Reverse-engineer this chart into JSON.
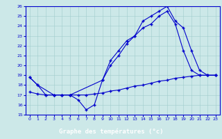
{
  "title": "Graphe des températures (°c)",
  "bg_color": "#cce8e8",
  "line_color": "#0000cc",
  "xlim": [
    -0.5,
    23.5
  ],
  "ylim": [
    15,
    26
  ],
  "yticks": [
    15,
    16,
    17,
    18,
    19,
    20,
    21,
    22,
    23,
    24,
    25,
    26
  ],
  "xticks": [
    0,
    1,
    2,
    3,
    4,
    5,
    6,
    7,
    8,
    9,
    10,
    11,
    12,
    13,
    14,
    15,
    16,
    17,
    18,
    19,
    20,
    21,
    22,
    23
  ],
  "series1_x": [
    0,
    1,
    2,
    3,
    4,
    5,
    6,
    7,
    8,
    9,
    10,
    11,
    12,
    13,
    14,
    15,
    16,
    17,
    18,
    19,
    20,
    21,
    22,
    23
  ],
  "series1_y": [
    18.8,
    18.0,
    17.0,
    17.0,
    17.0,
    17.0,
    16.5,
    15.5,
    16.0,
    18.5,
    20.0,
    21.0,
    22.2,
    23.0,
    24.5,
    25.0,
    25.5,
    26.0,
    24.5,
    23.8,
    21.5,
    19.5,
    19.0,
    19.0
  ],
  "series2_x": [
    0,
    1,
    3,
    4,
    5,
    9,
    10,
    11,
    12,
    13,
    14,
    15,
    16,
    17,
    18,
    19,
    20,
    21,
    22,
    23
  ],
  "series2_y": [
    18.8,
    18.0,
    17.0,
    17.0,
    17.0,
    18.5,
    20.5,
    21.5,
    22.5,
    23.0,
    23.8,
    24.2,
    25.0,
    25.5,
    24.2,
    21.5,
    19.5,
    19.0,
    19.0,
    19.0
  ],
  "series3_x": [
    0,
    1,
    2,
    3,
    4,
    5,
    6,
    7,
    8,
    9,
    10,
    11,
    12,
    13,
    14,
    15,
    16,
    17,
    18,
    19,
    20,
    21,
    22,
    23
  ],
  "series3_y": [
    17.3,
    17.1,
    17.0,
    17.0,
    17.0,
    17.0,
    17.0,
    17.0,
    17.1,
    17.2,
    17.4,
    17.5,
    17.7,
    17.9,
    18.0,
    18.2,
    18.4,
    18.5,
    18.7,
    18.8,
    18.9,
    19.0,
    19.0,
    19.0
  ]
}
